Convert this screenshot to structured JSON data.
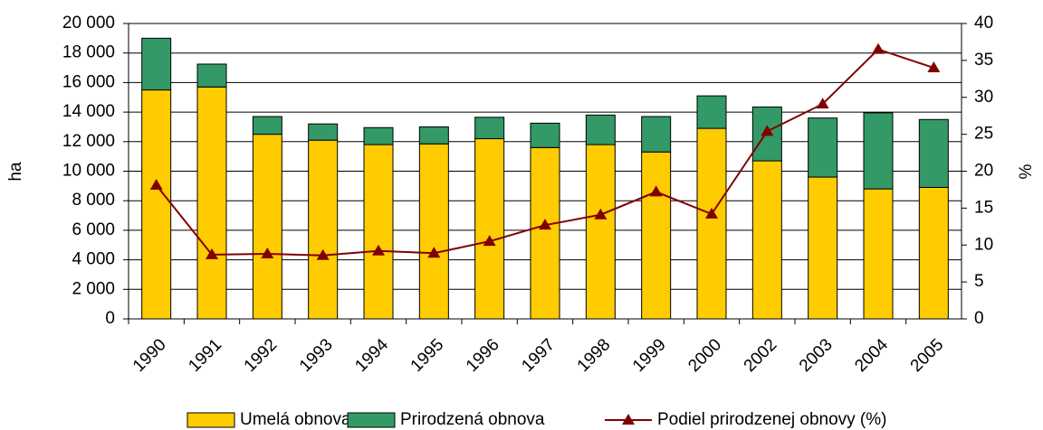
{
  "chart_data": {
    "type": "bar",
    "stacked": true,
    "categories": [
      "1990",
      "1991",
      "1992",
      "1993",
      "1994",
      "1995",
      "1996",
      "1997",
      "1998",
      "1999",
      "2000",
      "2002",
      "2003",
      "2004",
      "2005"
    ],
    "series": [
      {
        "name": "Umelá obnova",
        "color": "#ffcc00",
        "values": [
          15500,
          15700,
          12500,
          12100,
          11800,
          11850,
          12200,
          11600,
          11800,
          11300,
          12900,
          10700,
          9600,
          8800,
          8900
        ]
      },
      {
        "name": "Prirodzená obnova",
        "color": "#339966",
        "values": [
          3500,
          1550,
          1200,
          1100,
          1150,
          1150,
          1450,
          1650,
          2000,
          2400,
          2200,
          3650,
          4000,
          5150,
          4600
        ]
      },
      {
        "name": "Podiel prirodzenej obnovy (%)",
        "color": "#800000",
        "type": "line",
        "axis": "y2",
        "values": [
          18.1,
          8.7,
          8.8,
          8.6,
          9.2,
          8.9,
          10.5,
          12.7,
          14.1,
          17.2,
          14.2,
          25.4,
          29.1,
          36.5,
          34.0
        ]
      }
    ],
    "ylabel": "ha",
    "y2label": "%",
    "ylim": [
      0,
      20000
    ],
    "yticks": [
      0,
      {
        "value": 2000,
        "label": "2 000"
      },
      {
        "value": 4000,
        "label": "4 000"
      },
      {
        "value": 6000,
        "label": "6 000"
      },
      {
        "value": 8000,
        "label": "8 000"
      },
      {
        "value": 10000,
        "label": "10 000"
      },
      {
        "value": 12000,
        "label": "12 000"
      },
      {
        "value": 14000,
        "label": "14 000"
      },
      {
        "value": 16000,
        "label": "16 000"
      },
      {
        "value": 18000,
        "label": "18 000"
      },
      {
        "value": 20000,
        "label": "20 000"
      }
    ],
    "y2lim": [
      0,
      40
    ],
    "y2ticks": [
      0,
      5,
      10,
      15,
      20,
      25,
      30,
      35,
      40
    ],
    "grid": true,
    "legend": "bottom"
  }
}
